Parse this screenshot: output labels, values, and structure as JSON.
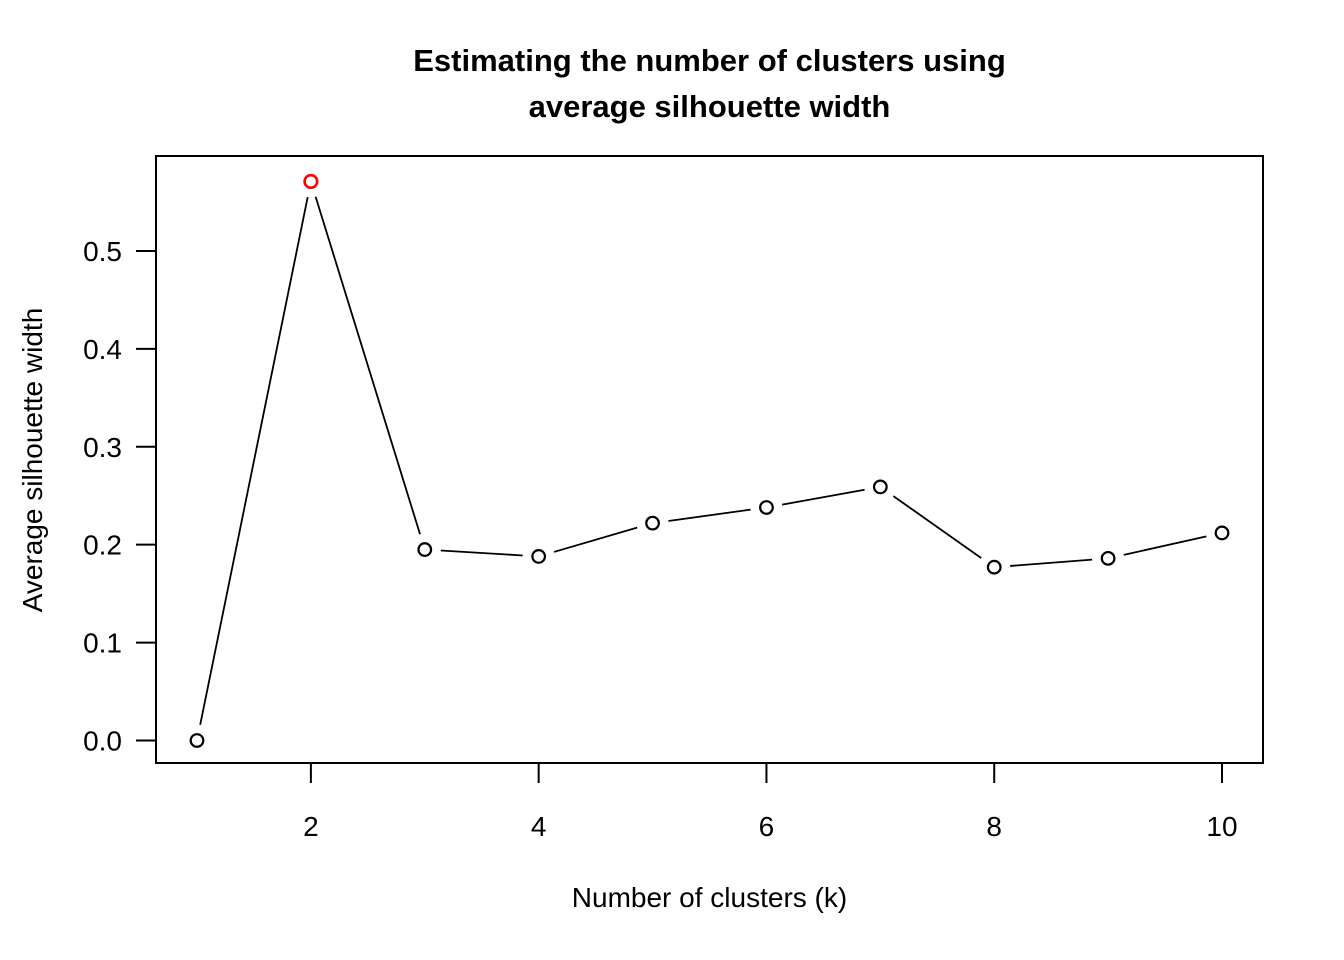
{
  "chart_data": {
    "type": "line",
    "line_type": "points-and-segments (R type='b')",
    "title": "Estimating the number of clusters using average silhouette width",
    "title_lines": [
      "Estimating the number of clusters using",
      "average silhouette width"
    ],
    "xlabel": "Number of clusters (k)",
    "ylabel": "Average silhouette width",
    "x": [
      1,
      2,
      3,
      4,
      5,
      6,
      7,
      8,
      9,
      10
    ],
    "values": [
      0.0,
      0.571,
      0.195,
      0.188,
      0.222,
      0.238,
      0.259,
      0.177,
      0.186,
      0.212
    ],
    "series_name": "Average silhouette width",
    "optimal_k": 2,
    "x_ticks": [
      2,
      4,
      6,
      8,
      10
    ],
    "x_tick_labels": [
      "2",
      "4",
      "6",
      "8",
      "10"
    ],
    "y_ticks": [
      0.0,
      0.1,
      0.2,
      0.3,
      0.4,
      0.5
    ],
    "y_tick_labels": [
      "0.0",
      "0.1",
      "0.2",
      "0.3",
      "0.4",
      "0.5"
    ],
    "xlim": [
      0.64,
      10.36
    ],
    "ylim": [
      -0.023,
      0.597
    ],
    "grid": false,
    "legend": false,
    "marker": "open-circle",
    "colors": {
      "line": "#000000",
      "marker": "#000000",
      "optimal_marker": "#FF0000",
      "text": "#000000",
      "background": "#FFFFFF",
      "box": "#000000"
    }
  }
}
